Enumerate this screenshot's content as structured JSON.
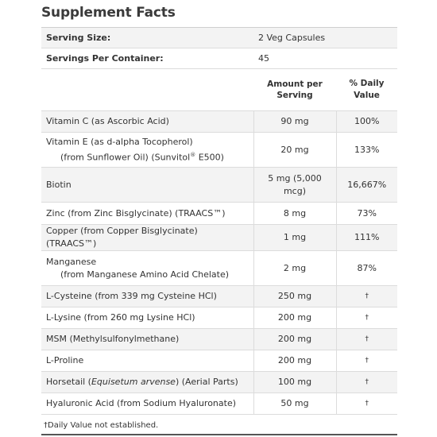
{
  "title": "Supplement Facts",
  "serving": {
    "size_label": "Serving Size:",
    "size_value": "2 Veg Capsules",
    "per_container_label": "Servings Per Container:",
    "per_container_value": "45"
  },
  "headers": {
    "amount_line1": "Amount per",
    "amount_line2": "Serving",
    "daily_value": "% Daily Value"
  },
  "rows": [
    {
      "name": "Vitamin C (as Ascorbic Acid)",
      "amount": "90 mg",
      "dv": "100%"
    },
    {
      "name": "Vitamin E (as d-alpha Tocopherol)",
      "sub": "(from Sunflower Oil) (Sunvitol",
      "sub_sup": "®",
      "sub_tail": " E500)",
      "amount": "20 mg",
      "dv": "133%"
    },
    {
      "name": "Biotin",
      "amount_line1": "5 mg (5,000",
      "amount_line2": "mcg)",
      "dv": "16,667%"
    },
    {
      "name": "Zinc (from Zinc Bisglycinate) (TRAACS™)",
      "amount": "8 mg",
      "dv": "73%"
    },
    {
      "name": "Copper (from Copper Bisglycinate) (TRAACS™)",
      "amount": "1 mg",
      "dv": "111%"
    },
    {
      "name": "Manganese",
      "sub": "(from Manganese Amino Acid Chelate)",
      "amount": "2 mg",
      "dv": "87%"
    },
    {
      "name": "L-Cysteine (from 339 mg Cysteine HCl)",
      "amount": "250 mg",
      "dv": "†"
    },
    {
      "name": "L-Lysine (from 260 mg Lysine HCl)",
      "amount": "200 mg",
      "dv": "†"
    },
    {
      "name": "MSM (Methylsulfonylmethane)",
      "amount": "200 mg",
      "dv": "†"
    },
    {
      "name": "L-Proline",
      "amount": "200 mg",
      "dv": "†"
    },
    {
      "name_pre": "Horsetail (",
      "name_italic": "Equisetum arvense",
      "name_post": ") (Aerial Parts)",
      "amount": "100 mg",
      "dv": "†"
    },
    {
      "name": "Hyaluronic Acid (from Sodium Hyaluronate)",
      "amount": "50 mg",
      "dv": "†"
    }
  ],
  "footnote": "†Daily Value not established."
}
